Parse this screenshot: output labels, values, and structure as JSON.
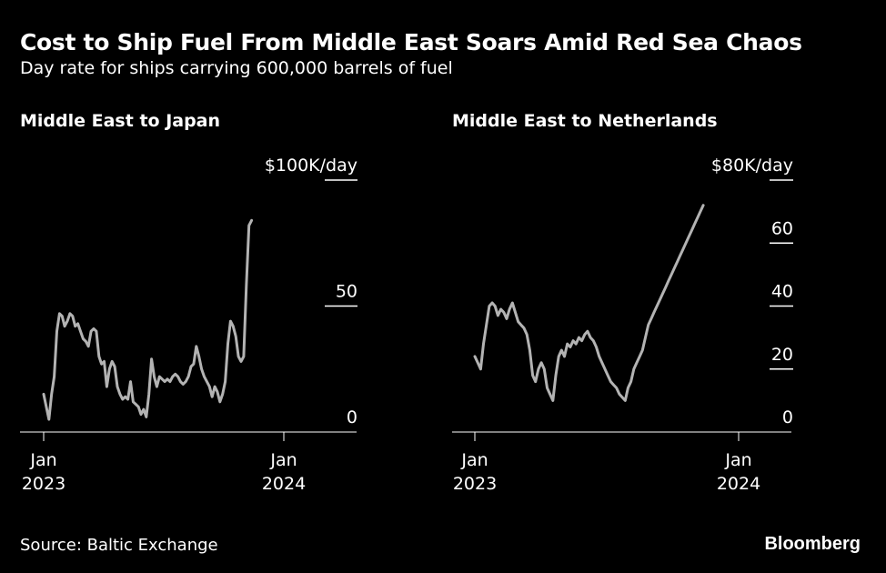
{
  "header": {
    "title": "Cost to Ship Fuel From Middle East Soars Amid Red Sea Chaos",
    "subtitle": "Day rate for ships carrying 600,000 barrels of fuel"
  },
  "footer": {
    "source": "Source: Baltic Exchange",
    "brand": "Bloomberg"
  },
  "colors": {
    "background": "#000000",
    "text": "#ffffff",
    "line": "#b3b3b3"
  },
  "chart_data": [
    {
      "type": "line",
      "title": "Middle East to Japan",
      "ylabel": "$100K/day",
      "unit_label": "$100K/day",
      "ylim": [
        0,
        100
      ],
      "yticks": [
        0,
        50,
        100
      ],
      "ytick_labels": [
        "0",
        "50",
        "$100K/day"
      ],
      "xlim": [
        "2023-01-01",
        "2024-02-20"
      ],
      "xticks": [
        {
          "date": "2023-01-01",
          "label": [
            "Jan",
            "2023"
          ]
        },
        {
          "date": "2024-01-01",
          "label": [
            "Jan",
            "2024"
          ]
        }
      ],
      "series": [
        {
          "points": [
            [
              "2023-01-01",
              15
            ],
            [
              "2023-01-05",
              10
            ],
            [
              "2023-01-09",
              5
            ],
            [
              "2023-01-13",
              15
            ],
            [
              "2023-01-17",
              22
            ],
            [
              "2023-01-21",
              40
            ],
            [
              "2023-01-25",
              47
            ],
            [
              "2023-01-29",
              46
            ],
            [
              "2023-02-02",
              42
            ],
            [
              "2023-02-06",
              44
            ],
            [
              "2023-02-10",
              47
            ],
            [
              "2023-02-14",
              46
            ],
            [
              "2023-02-18",
              42
            ],
            [
              "2023-02-22",
              43
            ],
            [
              "2023-02-26",
              40
            ],
            [
              "2023-03-02",
              37
            ],
            [
              "2023-03-06",
              36
            ],
            [
              "2023-03-10",
              34
            ],
            [
              "2023-03-14",
              40
            ],
            [
              "2023-03-18",
              41
            ],
            [
              "2023-03-22",
              40
            ],
            [
              "2023-03-26",
              30
            ],
            [
              "2023-03-30",
              27
            ],
            [
              "2023-04-03",
              28
            ],
            [
              "2023-04-07",
              18
            ],
            [
              "2023-04-11",
              25
            ],
            [
              "2023-04-15",
              28
            ],
            [
              "2023-04-19",
              26
            ],
            [
              "2023-04-23",
              18
            ],
            [
              "2023-04-27",
              15
            ],
            [
              "2023-05-01",
              13
            ],
            [
              "2023-05-05",
              14
            ],
            [
              "2023-05-09",
              13
            ],
            [
              "2023-05-13",
              20
            ],
            [
              "2023-05-17",
              12
            ],
            [
              "2023-05-21",
              11
            ],
            [
              "2023-05-25",
              10
            ],
            [
              "2023-05-29",
              7
            ],
            [
              "2023-06-02",
              9
            ],
            [
              "2023-06-06",
              6
            ],
            [
              "2023-06-10",
              15
            ],
            [
              "2023-06-14",
              29
            ],
            [
              "2023-06-18",
              22
            ],
            [
              "2023-06-22",
              18
            ],
            [
              "2023-06-26",
              22
            ],
            [
              "2023-06-30",
              21
            ],
            [
              "2023-07-04",
              20
            ],
            [
              "2023-07-08",
              21
            ],
            [
              "2023-07-12",
              20
            ],
            [
              "2023-07-16",
              22
            ],
            [
              "2023-07-20",
              23
            ],
            [
              "2023-07-24",
              22
            ],
            [
              "2023-07-28",
              20
            ],
            [
              "2023-08-01",
              19
            ],
            [
              "2023-08-05",
              20
            ],
            [
              "2023-08-09",
              22
            ],
            [
              "2023-08-13",
              26
            ],
            [
              "2023-08-17",
              27
            ],
            [
              "2023-08-21",
              34
            ],
            [
              "2023-08-25",
              30
            ],
            [
              "2023-08-29",
              25
            ],
            [
              "2023-09-02",
              22
            ],
            [
              "2023-09-06",
              20
            ],
            [
              "2023-09-10",
              18
            ],
            [
              "2023-09-14",
              14
            ],
            [
              "2023-09-18",
              18
            ],
            [
              "2023-09-22",
              16
            ],
            [
              "2023-09-26",
              12
            ],
            [
              "2023-09-30",
              15
            ],
            [
              "2023-10-04",
              20
            ],
            [
              "2023-10-08",
              35
            ],
            [
              "2023-10-12",
              44
            ],
            [
              "2023-10-16",
              42
            ],
            [
              "2023-10-20",
              38
            ],
            [
              "2023-10-24",
              30
            ],
            [
              "2023-10-28",
              28
            ],
            [
              "2023-11-01",
              30
            ],
            [
              "2023-11-05",
              58
            ],
            [
              "2023-11-09",
              82
            ],
            [
              "2023-11-13",
              84
            ]
          ]
        }
      ]
    },
    {
      "type": "line",
      "title": "Middle East to Netherlands",
      "ylabel": "$80K/day",
      "unit_label": "$80K/day",
      "ylim": [
        0,
        80
      ],
      "yticks": [
        0,
        20,
        40,
        60,
        80
      ],
      "ytick_labels": [
        "0",
        "20",
        "40",
        "60",
        "$80K/day"
      ],
      "xlim": [
        "2023-01-01",
        "2024-02-20"
      ],
      "xticks": [
        {
          "date": "2023-01-01",
          "label": [
            "Jan",
            "2023"
          ]
        },
        {
          "date": "2024-01-01",
          "label": [
            "Jan",
            "2024"
          ]
        }
      ],
      "series": [
        {
          "points": [
            [
              "2023-01-01",
              24
            ],
            [
              "2023-01-05",
              22
            ],
            [
              "2023-01-09",
              20
            ],
            [
              "2023-01-13",
              28
            ],
            [
              "2023-01-17",
              34
            ],
            [
              "2023-01-21",
              40
            ],
            [
              "2023-01-25",
              41
            ],
            [
              "2023-01-29",
              40
            ],
            [
              "2023-02-02",
              37
            ],
            [
              "2023-02-06",
              39
            ],
            [
              "2023-02-10",
              38
            ],
            [
              "2023-02-14",
              36
            ],
            [
              "2023-02-18",
              39
            ],
            [
              "2023-02-22",
              41
            ],
            [
              "2023-02-26",
              38
            ],
            [
              "2023-03-02",
              35
            ],
            [
              "2023-03-06",
              34
            ],
            [
              "2023-03-10",
              33
            ],
            [
              "2023-03-14",
              31
            ],
            [
              "2023-03-18",
              26
            ],
            [
              "2023-03-22",
              18
            ],
            [
              "2023-03-26",
              16
            ],
            [
              "2023-03-30",
              20
            ],
            [
              "2023-04-03",
              22
            ],
            [
              "2023-04-07",
              20
            ],
            [
              "2023-04-11",
              14
            ],
            [
              "2023-04-15",
              12
            ],
            [
              "2023-04-19",
              10
            ],
            [
              "2023-04-23",
              18
            ],
            [
              "2023-04-27",
              24
            ],
            [
              "2023-05-01",
              26
            ],
            [
              "2023-05-05",
              24
            ],
            [
              "2023-05-09",
              28
            ],
            [
              "2023-05-13",
              27
            ],
            [
              "2023-05-17",
              29
            ],
            [
              "2023-05-21",
              28
            ],
            [
              "2023-05-25",
              30
            ],
            [
              "2023-05-29",
              29
            ],
            [
              "2023-06-02",
              31
            ],
            [
              "2023-06-06",
              32
            ],
            [
              "2023-06-10",
              30
            ],
            [
              "2023-06-14",
              29
            ],
            [
              "2023-06-18",
              27
            ],
            [
              "2023-06-22",
              24
            ],
            [
              "2023-06-26",
              22
            ],
            [
              "2023-06-30",
              20
            ],
            [
              "2023-07-04",
              18
            ],
            [
              "2023-07-08",
              16
            ],
            [
              "2023-07-12",
              15
            ],
            [
              "2023-07-16",
              14
            ],
            [
              "2023-07-20",
              12
            ],
            [
              "2023-07-24",
              11
            ],
            [
              "2023-07-28",
              10
            ],
            [
              "2023-08-01",
              14
            ],
            [
              "2023-08-05",
              16
            ],
            [
              "2023-08-09",
              20
            ],
            [
              "2023-08-13",
              22
            ],
            [
              "2023-08-17",
              24
            ],
            [
              "2023-08-21",
              26
            ],
            [
              "2023-08-25",
              30
            ],
            [
              "2023-08-29",
              34
            ],
            [
              "2023-09-02",
              36
            ],
            [
              "2023-09-06",
              38
            ],
            [
              "2023-09-10",
              40
            ],
            [
              "2023-09-14",
              42
            ],
            [
              "2023-09-18",
              44
            ],
            [
              "2023-09-22",
              46
            ],
            [
              "2023-09-26",
              48
            ],
            [
              "2023-09-30",
              50
            ],
            [
              "2023-10-04",
              52
            ],
            [
              "2023-10-08",
              54
            ],
            [
              "2023-10-12",
              56
            ],
            [
              "2023-10-16",
              58
            ],
            [
              "2023-10-20",
              60
            ],
            [
              "2023-10-24",
              62
            ],
            [
              "2023-10-28",
              64
            ],
            [
              "2023-11-01",
              66
            ],
            [
              "2023-11-05",
              68
            ],
            [
              "2023-11-09",
              70
            ],
            [
              "2023-11-13",
              72
            ]
          ]
        }
      ]
    }
  ]
}
